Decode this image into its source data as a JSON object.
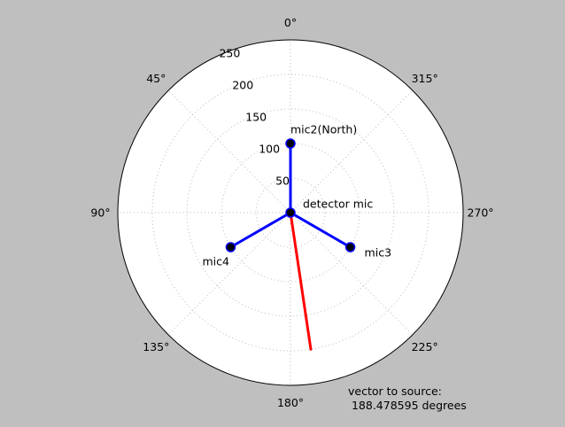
{
  "chart_data": {
    "type": "polar",
    "theta_zero_location": "top",
    "theta_direction": "counterclockwise",
    "theta_ticks": [
      {
        "deg": 0,
        "label": "0°"
      },
      {
        "deg": 45,
        "label": "45°"
      },
      {
        "deg": 90,
        "label": "90°"
      },
      {
        "deg": 135,
        "label": "135°"
      },
      {
        "deg": 180,
        "label": "180°"
      },
      {
        "deg": 225,
        "label": "225°"
      },
      {
        "deg": 270,
        "label": "270°"
      },
      {
        "deg": 315,
        "label": "315°"
      }
    ],
    "r_ticks": [
      {
        "r": 50,
        "label": "50"
      },
      {
        "r": 100,
        "label": "100"
      },
      {
        "r": 150,
        "label": "150"
      },
      {
        "r": 200,
        "label": "200"
      },
      {
        "r": 250,
        "label": "250"
      }
    ],
    "r_max": 250,
    "grid": true,
    "microphones": [
      {
        "name": "detector-mic",
        "label": "detector mic",
        "theta": 0,
        "r": 0
      },
      {
        "name": "mic2",
        "label": "mic2(North)",
        "theta": 0,
        "r": 100
      },
      {
        "name": "mic3",
        "label": "mic3",
        "theta": 240,
        "r": 100
      },
      {
        "name": "mic4",
        "label": "mic4",
        "theta": 120,
        "r": 100
      }
    ],
    "array_arms_color": "#0000ff",
    "source_vector": {
      "theta": 188.478595,
      "r": 200,
      "color": "#ff0000"
    },
    "annotation": "vector to source:\n 188.478595 degrees"
  }
}
